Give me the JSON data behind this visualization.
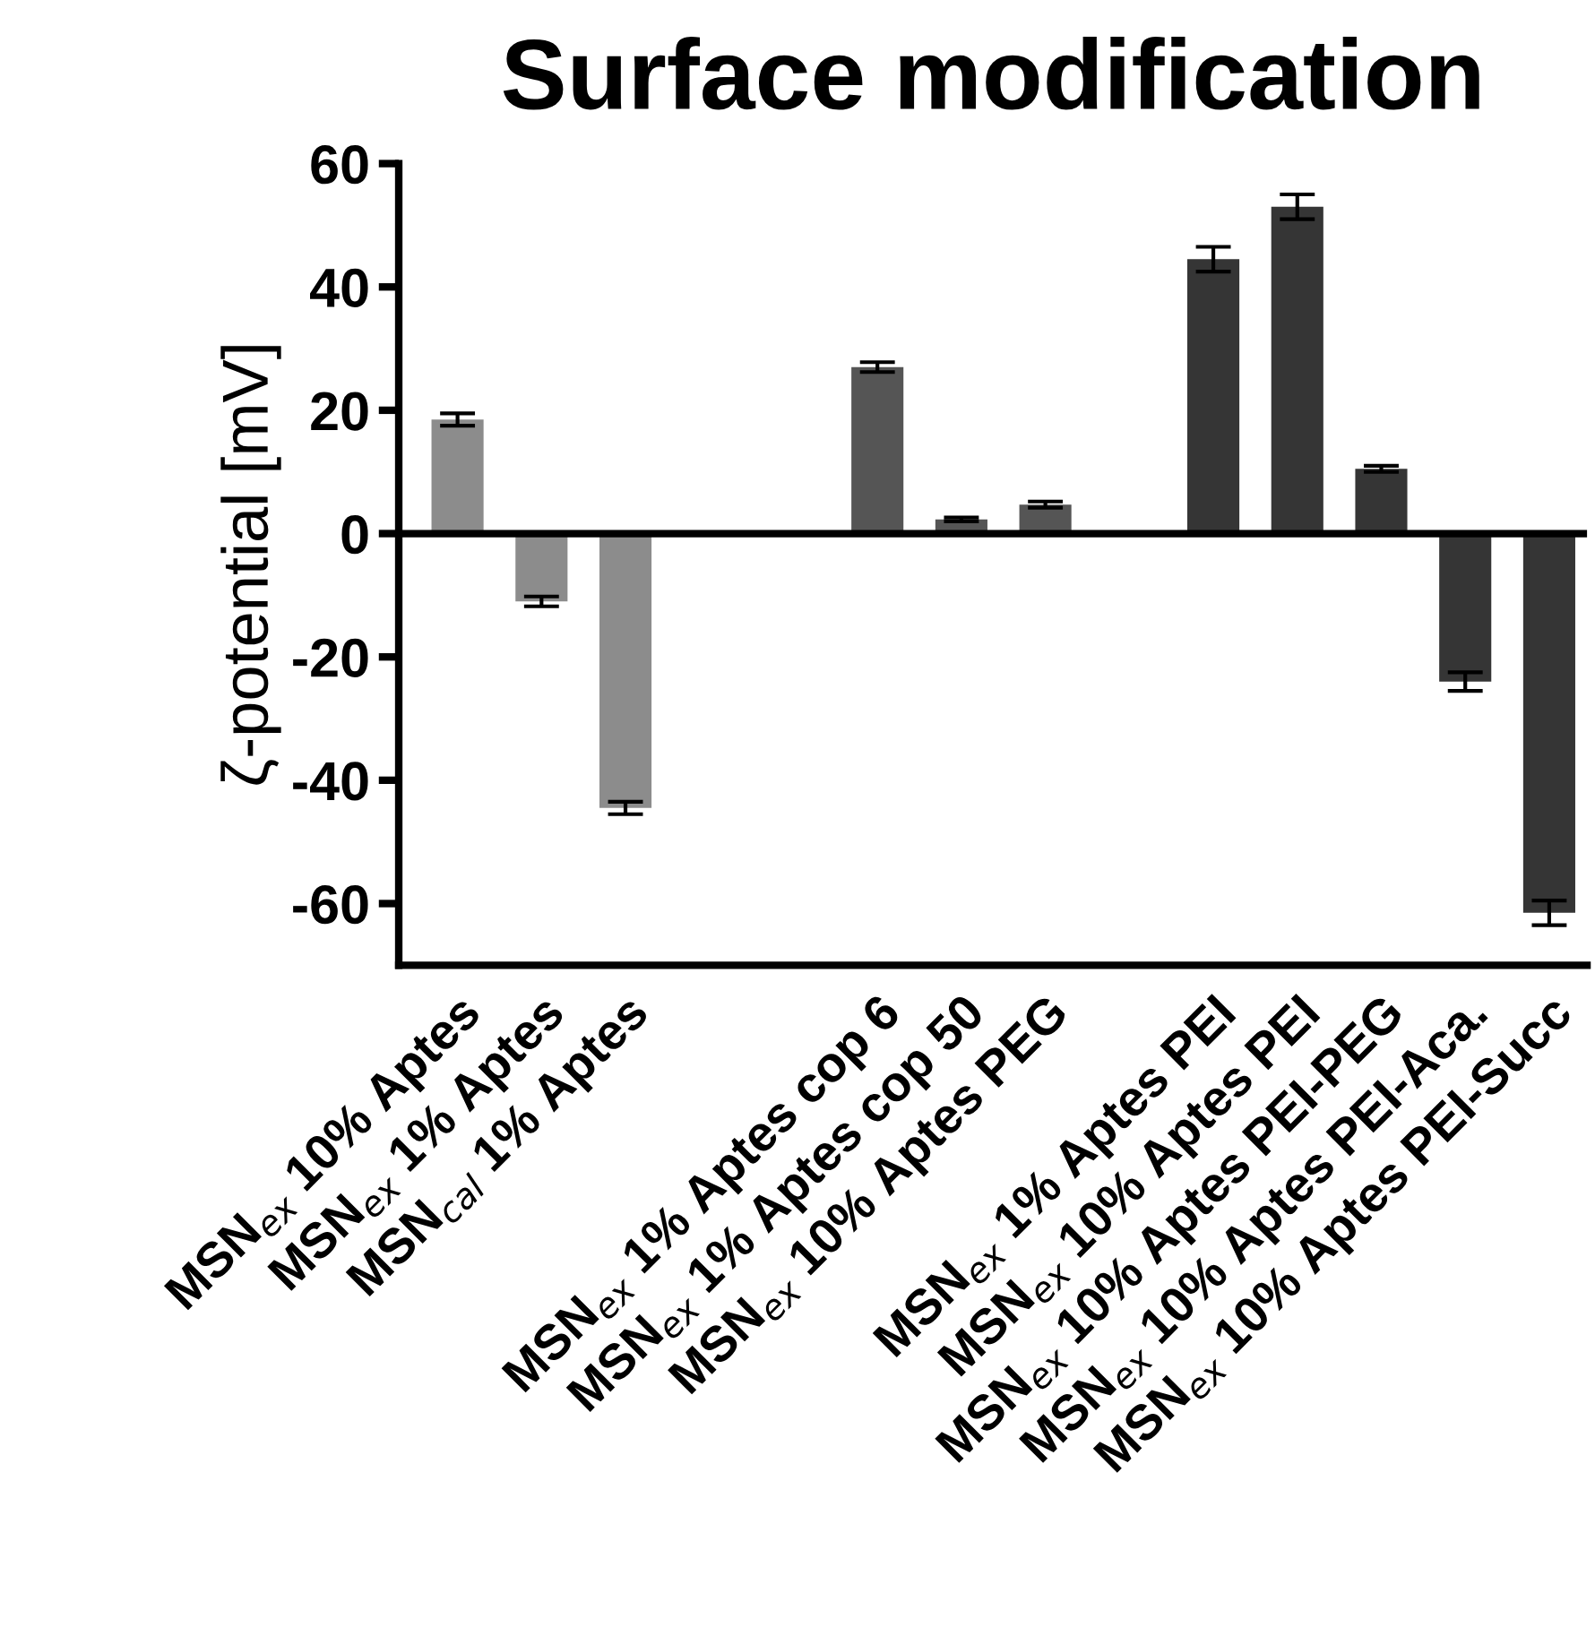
{
  "chart_data": {
    "type": "bar",
    "title": "Surface modification",
    "ylabel": "ζ-potential [mV]",
    "categories": [
      "MSN$_{ex}$ 10% Aptes",
      "MSN$_{ex}$ 1% Aptes",
      "MSN$_{cal}$ 1% Aptes",
      null,
      null,
      "MSN$_{ex}$ 1% Aptes cop 6",
      "MSN$_{ex}$ 1% Aptes cop 50",
      "MSN$_{ex}$ 10% Aptes PEG",
      null,
      "MSN$_{ex}$ 1% Aptes PEI",
      "MSN$_{ex}$ 10% Aptes PEI",
      "MSN$_{ex}$ 10% Aptes PEI-PEG",
      "MSN$_{ex}$ 10% Aptes PEI-Aca.",
      "MSN$_{ex}$ 10% Aptes PEI-Succ"
    ],
    "values": [
      18.5,
      -11,
      -44.5,
      null,
      null,
      27,
      2.3,
      4.7,
      null,
      44.5,
      53,
      10.5,
      -24,
      -61.5
    ],
    "errors": [
      1,
      0.8,
      1,
      null,
      null,
      0.8,
      0.3,
      0.5,
      null,
      2,
      2,
      0.5,
      1.5,
      2
    ],
    "colors": [
      "#8c8c8c",
      "#8c8c8c",
      "#8c8c8c",
      null,
      null,
      "#555555",
      "#555555",
      "#555555",
      null,
      "#353535",
      "#353535",
      "#353535",
      "#353535",
      "#353535"
    ],
    "ylim": [
      -70,
      60
    ],
    "yticks": [
      -60,
      -40,
      -20,
      0,
      20,
      40,
      60
    ],
    "ref_lines": [
      {
        "axis": "y",
        "value": 0,
        "color": "#000000"
      }
    ],
    "grid": false
  }
}
